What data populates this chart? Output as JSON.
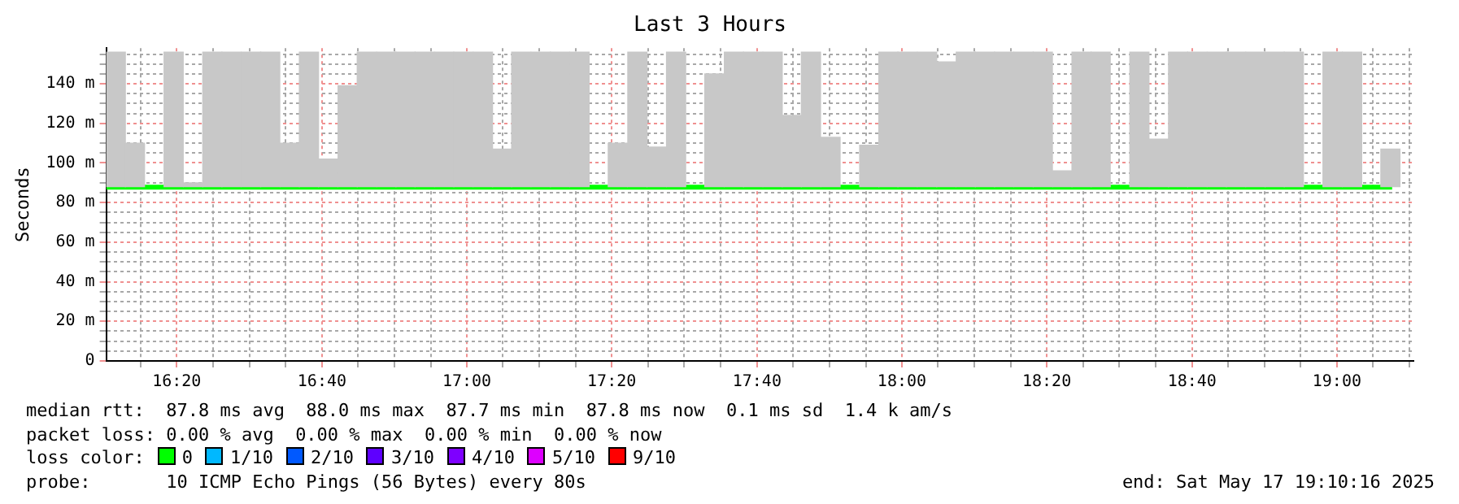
{
  "chart_data": {
    "type": "bar",
    "title": "Last 3 Hours",
    "ylabel": "Seconds",
    "xlim": [
      16.171,
      19.176
    ],
    "ylim": [
      0,
      158
    ],
    "xticks": [
      {
        "value": 16.25,
        "label": null
      },
      {
        "value": 16.333,
        "label": "16:20"
      },
      {
        "value": 16.417,
        "label": null
      },
      {
        "value": 16.5,
        "label": null
      },
      {
        "value": 16.583,
        "label": null
      },
      {
        "value": 16.667,
        "label": "16:40"
      },
      {
        "value": 16.75,
        "label": null
      },
      {
        "value": 16.833,
        "label": null
      },
      {
        "value": 16.917,
        "label": null
      },
      {
        "value": 17,
        "label": "17:00"
      },
      {
        "value": 17.083,
        "label": null
      },
      {
        "value": 17.167,
        "label": null
      },
      {
        "value": 17.25,
        "label": null
      },
      {
        "value": 17.333,
        "label": "17:20"
      },
      {
        "value": 17.417,
        "label": null
      },
      {
        "value": 17.5,
        "label": null
      },
      {
        "value": 17.583,
        "label": null
      },
      {
        "value": 17.667,
        "label": "17:40"
      },
      {
        "value": 17.75,
        "label": null
      },
      {
        "value": 17.833,
        "label": null
      },
      {
        "value": 17.917,
        "label": null
      },
      {
        "value": 18,
        "label": "18:00"
      },
      {
        "value": 18.083,
        "label": null
      },
      {
        "value": 18.167,
        "label": null
      },
      {
        "value": 18.25,
        "label": null
      },
      {
        "value": 18.333,
        "label": "18:20"
      },
      {
        "value": 18.417,
        "label": null
      },
      {
        "value": 18.5,
        "label": null
      },
      {
        "value": 18.583,
        "label": null
      },
      {
        "value": 18.667,
        "label": "18:40"
      },
      {
        "value": 18.75,
        "label": null
      },
      {
        "value": 18.833,
        "label": null
      },
      {
        "value": 18.917,
        "label": null
      },
      {
        "value": 19,
        "label": "19:00"
      },
      {
        "value": 19.083,
        "label": null
      },
      {
        "value": 19.167,
        "label": null
      }
    ],
    "yticks": [
      0,
      {
        "value": 5,
        "label": null
      },
      {
        "value": 10,
        "label": null
      },
      {
        "value": 15,
        "label": null
      },
      {
        "value": 20,
        "label": "20 m"
      },
      {
        "value": 25,
        "label": null
      },
      {
        "value": 30,
        "label": null
      },
      {
        "value": 35,
        "label": null
      },
      {
        "value": 40,
        "label": "40 m"
      },
      {
        "value": 45,
        "label": null
      },
      {
        "value": 50,
        "label": null
      },
      {
        "value": 55,
        "label": null
      },
      {
        "value": 60,
        "label": "60 m"
      },
      {
        "value": 65,
        "label": null
      },
      {
        "value": 70,
        "label": null
      },
      {
        "value": 75,
        "label": null
      },
      {
        "value": 80,
        "label": "80 m"
      },
      {
        "value": 85,
        "label": null
      },
      {
        "value": 90,
        "label": null
      },
      {
        "value": 95,
        "label": null
      },
      {
        "value": 100,
        "label": "100 m"
      },
      {
        "value": 105,
        "label": null
      },
      {
        "value": 110,
        "label": null
      },
      {
        "value": 115,
        "label": null
      },
      {
        "value": 120,
        "label": "120 m"
      },
      {
        "value": 125,
        "label": null
      },
      {
        "value": 130,
        "label": null
      },
      {
        "value": 135,
        "label": null
      },
      {
        "value": 140,
        "label": "140 m"
      },
      {
        "value": 145,
        "label": null
      },
      {
        "value": 150,
        "label": null
      },
      {
        "value": 155,
        "label": null
      }
    ],
    "grid": true,
    "legend": false,
    "marker": "none",
    "series": [
      {
        "color": "#c8c8c8",
        "x": [
          16.193,
          16.237,
          16.282,
          16.326,
          16.371,
          16.415,
          16.459,
          16.504,
          16.548,
          16.593,
          16.637,
          16.681,
          16.726,
          16.77,
          16.815,
          16.859,
          16.903,
          16.948,
          16.992,
          17.037,
          17.081,
          17.125,
          17.17,
          17.214,
          17.259,
          17.303,
          17.347,
          17.392,
          17.436,
          17.481,
          17.525,
          17.569,
          17.614,
          17.658,
          17.703,
          17.747,
          17.791,
          17.836,
          17.88,
          17.925,
          17.969,
          18.013,
          18.058,
          18.102,
          18.147,
          18.191,
          18.235,
          18.28,
          18.324,
          18.369,
          18.413,
          18.457,
          18.502,
          18.546,
          18.591,
          18.635,
          18.679,
          18.724,
          18.768,
          18.813,
          18.857,
          18.901,
          18.946,
          18.99,
          19.035,
          19.079,
          19.123
        ],
        "base": [
          88,
          88,
          null,
          88,
          88,
          88,
          88,
          88,
          88,
          88,
          88,
          88,
          88,
          88,
          88,
          88,
          88,
          88,
          88,
          88,
          88,
          88,
          88,
          88,
          88,
          null,
          88,
          88,
          88,
          88,
          null,
          88,
          88,
          88,
          88,
          88,
          88,
          88,
          null,
          88,
          88,
          88,
          88,
          88,
          88,
          88,
          88,
          88,
          88,
          88,
          88,
          88,
          null,
          88,
          88,
          88,
          88,
          88,
          88,
          88,
          88,
          88,
          null,
          88,
          88,
          null,
          88
        ],
        "values": [
          68,
          22,
          null,
          68,
          2,
          68,
          68,
          68,
          68,
          22,
          68,
          14,
          51,
          68,
          68,
          68,
          68,
          68,
          68,
          68,
          19,
          68,
          68,
          68,
          68,
          null,
          22,
          68,
          20,
          68,
          null,
          57,
          68,
          68,
          68,
          36,
          68,
          25,
          null,
          21,
          68,
          68,
          68,
          63,
          68,
          68,
          68,
          68,
          68,
          8,
          68,
          68,
          null,
          68,
          24,
          68,
          68,
          68,
          68,
          68,
          68,
          68,
          null,
          68,
          68,
          null,
          19
        ]
      },
      {
        "type": "line",
        "color": "#00ff00",
        "x": [
          16.171,
          19.127
        ],
        "values": [
          87.8,
          87.8
        ]
      }
    ],
    "annotations": [
      "median rtt:  87.8 ms avg  88.0 ms max  87.7 ms min  87.8 ms now  0.1 ms sd  1.4 k am/s",
      "packet loss: 0.00 % avg  0.00 % max  0.00 % min  0.00 % now",
      "loss color:",
      "0",
      "1/10",
      "2/10",
      "3/10",
      "4/10",
      "5/10",
      "9/10",
      "probe:       10 ICMP Echo Pings (56 Bytes) every 80s",
      "end: Sat May 17 19:10:16 2025"
    ]
  }
}
